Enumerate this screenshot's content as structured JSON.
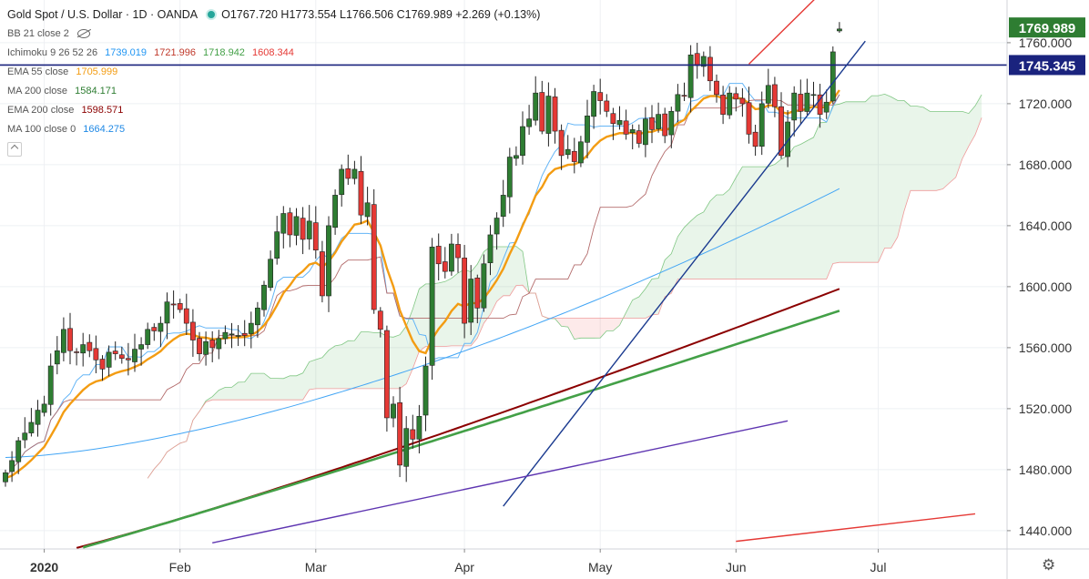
{
  "header": {
    "symbol": "Gold Spot / U.S. Dollar · 1D · OANDA",
    "ohlc": "O1767.720 H1773.554 L1766.506 C1769.989 +2.269 (+0.13%)"
  },
  "indicators": [
    {
      "label": "BB 21 close 2",
      "values": []
    },
    {
      "label": "Ichimoku 9 26 52 26",
      "values": [
        {
          "text": "1739.019",
          "color": "#2196f3"
        },
        {
          "text": "1721.996",
          "color": "#c0392b"
        },
        {
          "text": "1718.942",
          "color": "#43a047"
        },
        {
          "text": "1608.344",
          "color": "#e53935"
        }
      ]
    },
    {
      "label": "EMA 55 close",
      "values": [
        {
          "text": "1705.999",
          "color": "#f39c12"
        }
      ]
    },
    {
      "label": "MA 200 close",
      "values": [
        {
          "text": "1584.171",
          "color": "#2e7d32"
        }
      ]
    },
    {
      "label": "EMA 200 close",
      "values": [
        {
          "text": "1598.571",
          "color": "#8b0000"
        }
      ]
    },
    {
      "label": "MA 100 close 0",
      "values": [
        {
          "text": "1664.275",
          "color": "#1e88e5"
        }
      ]
    }
  ],
  "chart_data": {
    "type": "candlestick",
    "ylim": [
      1428,
      1788
    ],
    "y_ticks": [
      1440,
      1480,
      1520,
      1560,
      1600,
      1640,
      1680,
      1720,
      1760
    ],
    "y_tick_labels": [
      "1440.000",
      "1480.000",
      "1520.000",
      "1560.000",
      "1600.000",
      "1640.000",
      "1680.000",
      "1720.000",
      "1760.000"
    ],
    "x_labels": [
      {
        "label": "2020",
        "bar": 6
      },
      {
        "label": "Feb",
        "bar": 27
      },
      {
        "label": "Mar",
        "bar": 48
      },
      {
        "label": "Apr",
        "bar": 71
      },
      {
        "label": "May",
        "bar": 92
      },
      {
        "label": "Jun",
        "bar": 113
      },
      {
        "label": "Jul",
        "bar": 135
      }
    ],
    "bar_count": 130,
    "future_bars": 24,
    "price_tags": [
      {
        "label": "1769.989",
        "value": 1769.989,
        "bg": "#2e7d32"
      },
      {
        "label": "1745.345",
        "value": 1745.345,
        "bg": "#1a237e"
      }
    ],
    "horizontal_level": 1745.345,
    "closes": [
      1478,
      1486,
      1499,
      1504,
      1511,
      1519,
      1523,
      1548,
      1558,
      1572,
      1558,
      1557,
      1562,
      1558,
      1552,
      1546,
      1557,
      1556,
      1553,
      1552,
      1559,
      1562,
      1572,
      1571,
      1576,
      1590,
      1588,
      1585,
      1576,
      1565,
      1556,
      1564,
      1560,
      1566,
      1570,
      1569,
      1568,
      1568,
      1576,
      1586,
      1601,
      1618,
      1636,
      1648,
      1634,
      1646,
      1631,
      1643,
      1624,
      1594,
      1640,
      1660,
      1677,
      1671,
      1677,
      1647,
      1655,
      1585,
      1572,
      1514,
      1523,
      1483,
      1507,
      1500,
      1515,
      1548,
      1626,
      1615,
      1610,
      1628,
      1619,
      1576,
      1605,
      1586,
      1615,
      1634,
      1645,
      1660,
      1685,
      1686,
      1705,
      1710,
      1727,
      1702,
      1725,
      1702,
      1686,
      1690,
      1682,
      1695,
      1712,
      1728,
      1722,
      1715,
      1707,
      1709,
      1700,
      1703,
      1694,
      1710,
      1703,
      1713,
      1699,
      1715,
      1726,
      1725,
      1752,
      1745,
      1751,
      1735,
      1726,
      1713,
      1727,
      1723,
      1720,
      1700,
      1692,
      1720,
      1732,
      1718,
      1686,
      1708,
      1727,
      1715,
      1727,
      1726,
      1713,
      1721,
      1754,
      1769
    ],
    "ema55_last": 1705.999,
    "ma200_last": 1584.171,
    "ema200_last": 1598.571,
    "ma100_last": 1664.275,
    "trendlines": [
      {
        "name": "rising-support",
        "color": "#1a3a8f",
        "points": [
          [
            77,
            1456
          ],
          [
            133,
            1761
          ]
        ]
      },
      {
        "name": "long-term-support",
        "color": "#5e35b1",
        "points": [
          [
            32,
            1432
          ],
          [
            121,
            1512
          ]
        ]
      },
      {
        "name": "upper-channel",
        "color": "#e53935",
        "points": [
          [
            115,
            1746
          ],
          [
            126,
            1792
          ]
        ]
      },
      {
        "name": "lower-channel",
        "color": "#e53935",
        "points": [
          [
            113,
            1433
          ],
          [
            150,
            1451
          ]
        ]
      }
    ]
  }
}
